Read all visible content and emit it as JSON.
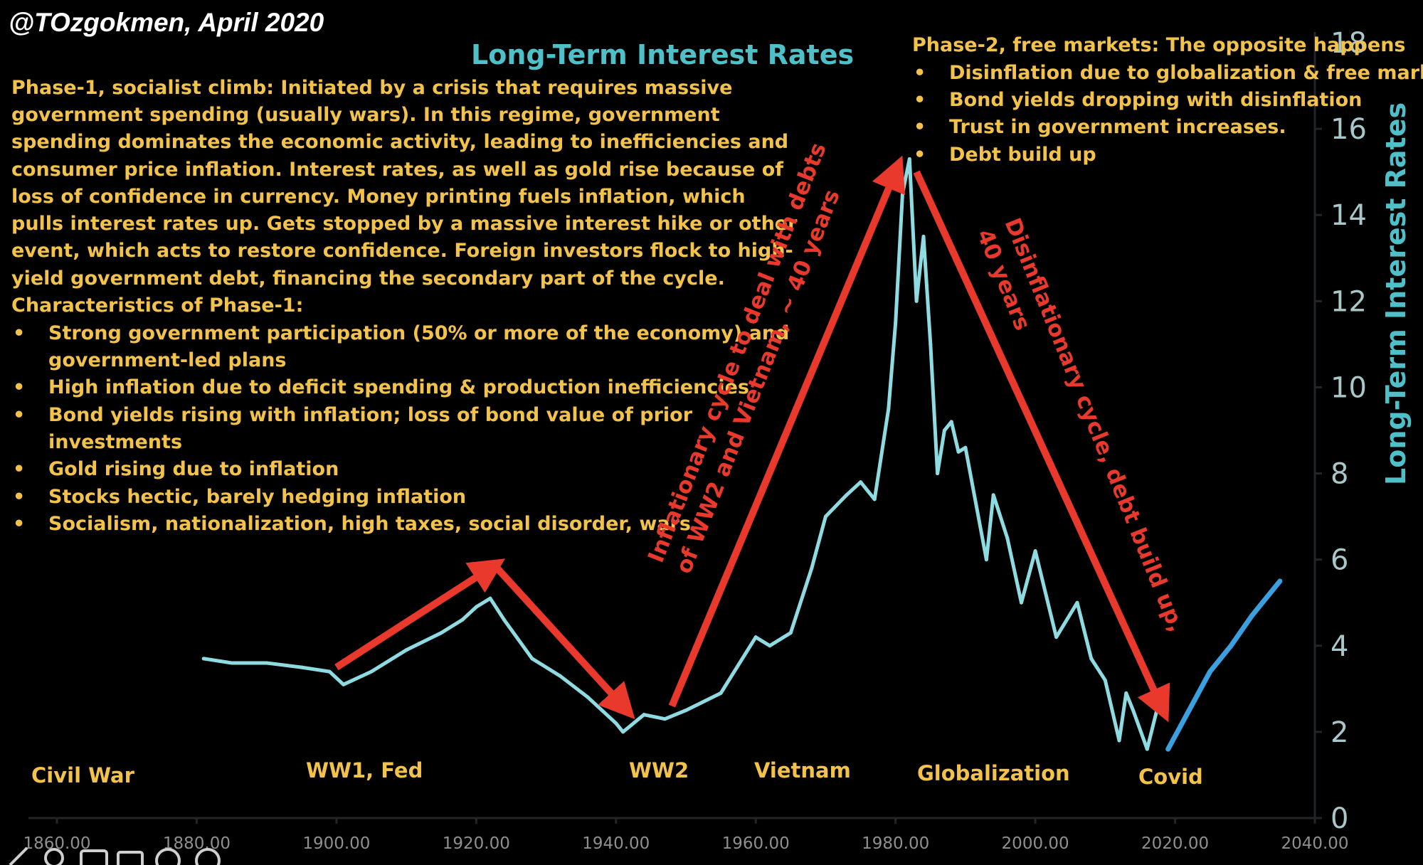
{
  "chart_data": {
    "type": "line",
    "title": "Long-Term Interest Rates",
    "author": "@TOzgokmen, April 2020",
    "ylabel": "Long-Term Interest Rates",
    "xlabel": "",
    "xlim": [
      1860,
      2040
    ],
    "ylim": [
      0,
      18
    ],
    "xticks": [
      1860,
      1880,
      1900,
      1920,
      1940,
      1960,
      1980,
      2000,
      2020,
      2040
    ],
    "xtick_labels": [
      "1860.00",
      "1880.00",
      "1900.00",
      "1920.00",
      "1940.00",
      "1960.00",
      "1980.00",
      "2000.00",
      "2020.00",
      "2040.00"
    ],
    "yticks": [
      0,
      2,
      4,
      6,
      8,
      10,
      12,
      14,
      16,
      18
    ],
    "ytick_labels": [
      "0",
      "2",
      "4",
      "6",
      "8",
      "10",
      "12",
      "14",
      "16",
      "18"
    ],
    "colors": {
      "series": "#8fdbe2",
      "projection": "#3aa0e0",
      "arrows": "#e8392c",
      "annotation_text": "#f2c24a",
      "title": "#4fc0c8"
    },
    "series": [
      {
        "name": "Long-Term Interest Rates",
        "x": [
          1881,
          1885,
          1890,
          1895,
          1899,
          1901,
          1905,
          1910,
          1915,
          1918,
          1920,
          1922,
          1924,
          1928,
          1932,
          1936,
          1940,
          1941,
          1944,
          1947,
          1950,
          1955,
          1960,
          1962,
          1965,
          1968,
          1970,
          1973,
          1975,
          1977,
          1979,
          1980,
          1981,
          1982,
          1983,
          1984,
          1985,
          1986,
          1987,
          1988,
          1989,
          1990,
          1993,
          1994,
          1996,
          1998,
          2000,
          2003,
          2006,
          2008,
          2010,
          2012,
          2013,
          2014,
          2016,
          2018
        ],
        "values": [
          3.7,
          3.6,
          3.6,
          3.5,
          3.4,
          3.1,
          3.4,
          3.9,
          4.3,
          4.6,
          4.9,
          5.1,
          4.6,
          3.7,
          3.3,
          2.8,
          2.2,
          2.0,
          2.4,
          2.3,
          2.5,
          2.9,
          4.2,
          4.0,
          4.3,
          5.8,
          7.0,
          7.5,
          7.8,
          7.4,
          9.5,
          11.5,
          14.5,
          15.3,
          12.0,
          13.5,
          11.0,
          8.0,
          9.0,
          9.2,
          8.5,
          8.6,
          6.0,
          7.5,
          6.5,
          5.0,
          6.2,
          4.2,
          5.0,
          3.7,
          3.2,
          1.8,
          2.9,
          2.5,
          1.6,
          2.9
        ]
      },
      {
        "name": "Projection",
        "x": [
          2019,
          2022,
          2025,
          2028,
          2031,
          2035
        ],
        "values": [
          1.6,
          2.5,
          3.4,
          4.0,
          4.7,
          5.5
        ]
      }
    ],
    "arrows": [
      {
        "from": [
          1900,
          3.5
        ],
        "to": [
          1922,
          5.8
        ],
        "label": ""
      },
      {
        "from": [
          1923,
          5.8
        ],
        "to": [
          1941,
          2.6
        ],
        "label": ""
      },
      {
        "from": [
          1948,
          2.6
        ],
        "to": [
          1980,
          15.0
        ],
        "label": "Inflationary cycle to deal with debts of WW2 and Vietnam, ~ 40 years"
      },
      {
        "from": [
          1983,
          15.0
        ],
        "to": [
          2018,
          2.6
        ],
        "label": "Disinflationary cycle, debt build up, 40 years"
      }
    ],
    "annotations": {
      "phase1_paragraph": [
        "Phase-1, socialist climb: Initiated by a crisis that requires massive",
        "government spending (usually wars). In this regime, government",
        "spending dominates the economic activity, leading to inefficiencies and",
        "consumer price inflation. Interest rates, as well as gold rise because of",
        "loss of confidence in currency. Money printing fuels inflation, which",
        "pulls interest rates up. Gets stopped by a massive interest hike or other",
        "event, which acts to restore confidence. Foreign investors flock to high-",
        "yield government debt, financing the secondary part of the cycle.",
        "Characteristics of Phase-1:"
      ],
      "phase1_bullets": [
        "Strong government participation (50% or more of the economy) and",
        "government-led plans",
        "High inflation due to deficit spending & production inefficiencies",
        "Bond yields rising with inflation; loss of bond value of prior",
        "investments",
        "Gold rising due to inflation",
        "Stocks hectic, barely hedging inflation",
        "Socialism, nationalization, high taxes, social disorder, wars"
      ],
      "phase2_heading": "Phase-2, free markets: The opposite happens",
      "phase2_bullets": [
        "Disinflation due to globalization & free markets",
        "Bond yields dropping with disinflation",
        "Trust in government increases.",
        "Debt build up"
      ],
      "arrow_label_inflationary": [
        "Inflationary cycle to deal with debts",
        "of WW2 and Vietnam, ~ 40 years"
      ],
      "arrow_label_disinflationary": [
        "Disinflationary cycle, debt build up,",
        "40 years"
      ],
      "events": [
        "Civil War",
        "WW1, Fed",
        "WW2",
        "Vietnam",
        "Globalization",
        "Covid"
      ]
    }
  }
}
